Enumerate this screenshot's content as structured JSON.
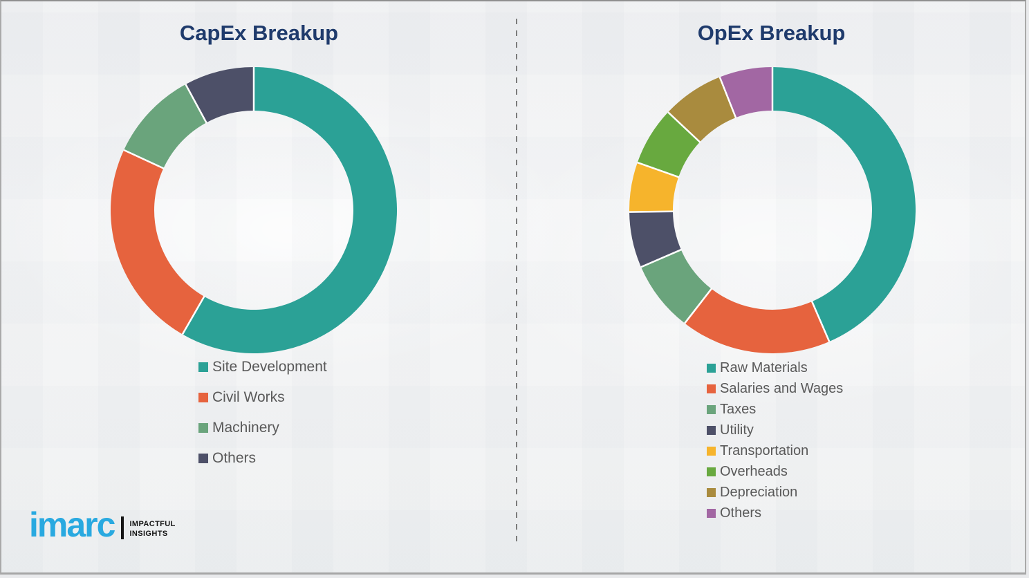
{
  "chart_data": [
    {
      "type": "pie",
      "subtype": "donut",
      "title": "CapEx Breakup",
      "start_angle_deg": 0,
      "direction": "clockwise",
      "legend_position": "below",
      "segments": [
        {
          "label": "Site Development",
          "value": 58.3,
          "color": "#2ba196"
        },
        {
          "label": "Civil Works",
          "value": 23.6,
          "color": "#e6633e"
        },
        {
          "label": "Machinery",
          "value": 10.2,
          "color": "#6aa47c"
        },
        {
          "label": "Others",
          "value": 7.9,
          "color": "#4d5068"
        }
      ]
    },
    {
      "type": "pie",
      "subtype": "donut",
      "title": "OpEx Breakup",
      "start_angle_deg": 0,
      "direction": "clockwise",
      "legend_position": "below",
      "segments": [
        {
          "label": "Raw Materials",
          "value": 43.5,
          "color": "#2ba196"
        },
        {
          "label": "Salaries and Wages",
          "value": 17.0,
          "color": "#e6633e"
        },
        {
          "label": "Taxes",
          "value": 8.0,
          "color": "#6aa47c"
        },
        {
          "label": "Utility",
          "value": 6.3,
          "color": "#4d5068"
        },
        {
          "label": "Transportation",
          "value": 5.6,
          "color": "#f6b42c"
        },
        {
          "label": "Overheads",
          "value": 6.6,
          "color": "#68a93f"
        },
        {
          "label": "Depreciation",
          "value": 7.0,
          "color": "#a98b3e"
        },
        {
          "label": "Others",
          "value": 6.0,
          "color": "#a267a3"
        }
      ]
    }
  ],
  "logo": {
    "brand": "imarc",
    "tagline_line1": "IMPACTFUL",
    "tagline_line2": "INSIGHTS",
    "brand_color": "#29a9e0"
  },
  "colors": {
    "title_text": "#1f3b6c",
    "legend_text": "#595959",
    "divider": "#7b7b7b",
    "background": "#f2f3f4"
  }
}
